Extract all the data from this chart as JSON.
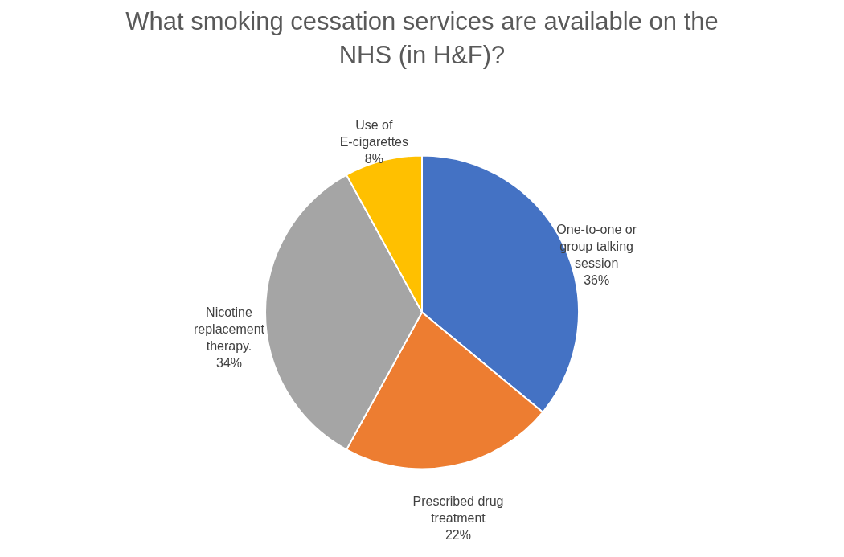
{
  "chart_data": {
    "type": "pie",
    "title": "What smoking cessation services are available on the NHS (in H&F)?",
    "categories": [
      "One-to-one or group talking session",
      "Prescribed drug treatment",
      "Nicotine replacement therapy.",
      "Use of E-cigarettes"
    ],
    "values": [
      36,
      22,
      34,
      8
    ],
    "value_labels": [
      "36%",
      "22%",
      "34%",
      "8%"
    ],
    "colors": [
      "#4472c4",
      "#ed7d31",
      "#a5a5a5",
      "#ffc000"
    ],
    "legend": false
  }
}
